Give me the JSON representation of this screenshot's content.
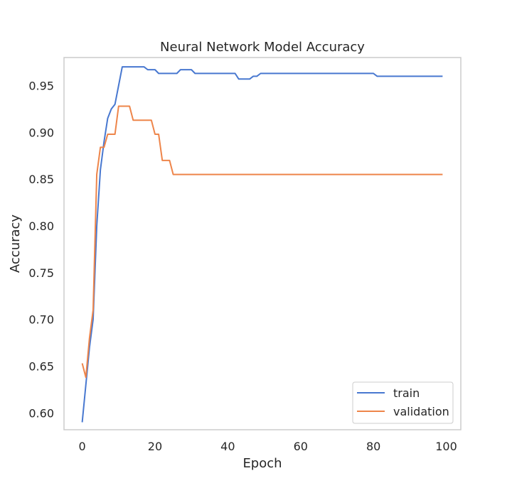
{
  "chart_data": {
    "type": "line",
    "title": "Neural Network Model Accuracy",
    "xlabel": "Epoch",
    "ylabel": "Accuracy",
    "xlim": [
      -5,
      104
    ],
    "ylim": [
      0.582,
      0.98
    ],
    "xticks": [
      0,
      20,
      40,
      60,
      80,
      100
    ],
    "yticks": [
      0.6,
      0.65,
      0.7,
      0.75,
      0.8,
      0.85,
      0.9,
      0.95
    ],
    "ytick_labels": [
      "0.60",
      "0.65",
      "0.70",
      "0.75",
      "0.80",
      "0.85",
      "0.90",
      "0.95"
    ],
    "grid": false,
    "legend_position": "bottom-right",
    "series": [
      {
        "name": "train",
        "color": "#4878d0",
        "points": [
          [
            0,
            0.59
          ],
          [
            1,
            0.63
          ],
          [
            2,
            0.67
          ],
          [
            3,
            0.7
          ],
          [
            4,
            0.8
          ],
          [
            5,
            0.86
          ],
          [
            6,
            0.89
          ],
          [
            7,
            0.915
          ],
          [
            8,
            0.925
          ],
          [
            9,
            0.93
          ],
          [
            10,
            0.95
          ],
          [
            11,
            0.97
          ],
          [
            17,
            0.97
          ],
          [
            18,
            0.967
          ],
          [
            20,
            0.967
          ],
          [
            21,
            0.963
          ],
          [
            26,
            0.963
          ],
          [
            27,
            0.967
          ],
          [
            30,
            0.967
          ],
          [
            31,
            0.963
          ],
          [
            42,
            0.963
          ],
          [
            43,
            0.957
          ],
          [
            46,
            0.957
          ],
          [
            47,
            0.96
          ],
          [
            48,
            0.96
          ],
          [
            49,
            0.963
          ],
          [
            80,
            0.963
          ],
          [
            81,
            0.96
          ],
          [
            99,
            0.96
          ]
        ]
      },
      {
        "name": "validation",
        "color": "#ee854a",
        "points": [
          [
            0,
            0.653
          ],
          [
            1,
            0.638
          ],
          [
            2,
            0.68
          ],
          [
            3,
            0.71
          ],
          [
            4,
            0.855
          ],
          [
            5,
            0.884
          ],
          [
            6,
            0.884
          ],
          [
            7,
            0.898
          ],
          [
            9,
            0.898
          ],
          [
            10,
            0.928
          ],
          [
            13,
            0.928
          ],
          [
            14,
            0.913
          ],
          [
            19,
            0.913
          ],
          [
            20,
            0.898
          ],
          [
            21,
            0.898
          ],
          [
            22,
            0.87
          ],
          [
            24,
            0.87
          ],
          [
            25,
            0.855
          ],
          [
            99,
            0.855
          ]
        ]
      }
    ]
  }
}
